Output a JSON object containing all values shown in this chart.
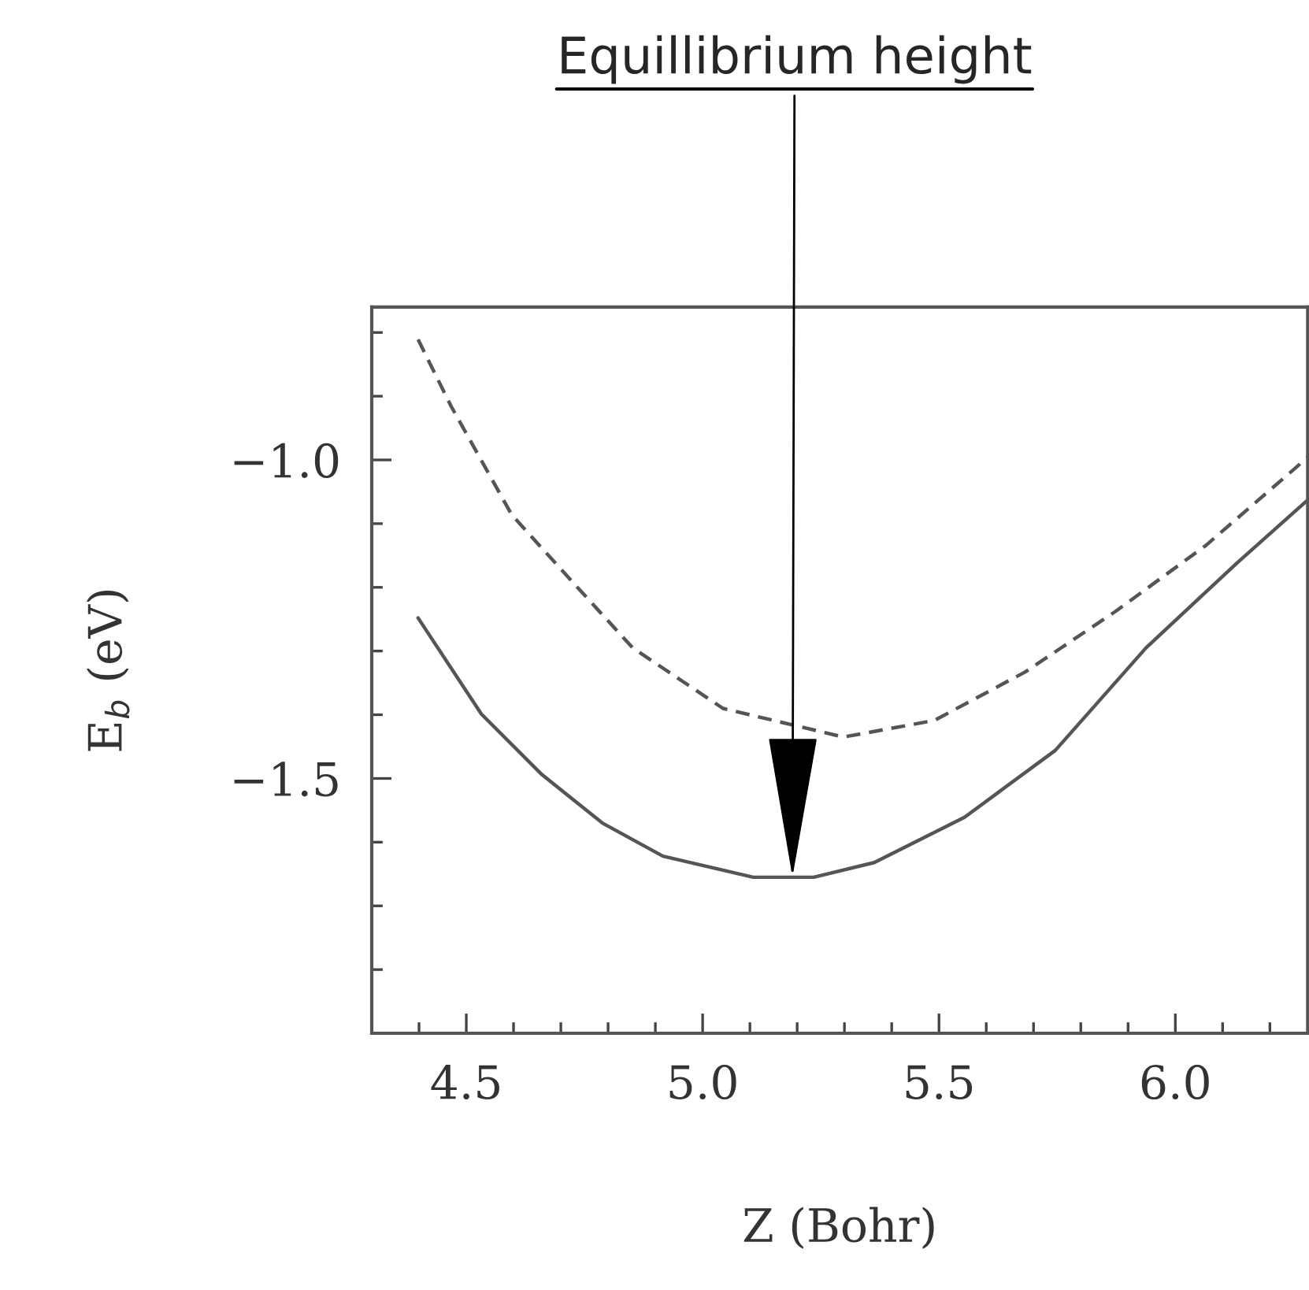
{
  "chart_data": {
    "type": "line",
    "xlabel": "Z (Bohr)",
    "ylabel": "E$_{b}$ (eV)",
    "xlim": [
      4.3,
      6.28
    ],
    "ylim": [
      -1.9,
      -0.76
    ],
    "xticks": [
      4.5,
      {
        "value": 5.0,
        "label": "5.0"
      },
      5.5,
      {
        "value": 6.0,
        "label": "6.0"
      }
    ],
    "yticks": [
      {
        "value": -1.0,
        "label": "−1.0"
      },
      {
        "value": -1.5,
        "label": "−1.5"
      }
    ],
    "grid": false,
    "marker": "none",
    "annotations": [
      {
        "text": "Equillibrium height",
        "x": 5.19,
        "y": -1.655
      }
    ],
    "series": [
      {
        "color": "#555555",
        "line_style": "dashed",
        "x": [
          4.398,
          4.468,
          4.596,
          4.724,
          4.852,
          5.043,
          5.298,
          5.49,
          5.682,
          5.873,
          6.065,
          6.28
        ],
        "values": [
          -0.811,
          -0.916,
          -1.086,
          -1.191,
          -1.295,
          -1.39,
          -1.435,
          -1.409,
          -1.333,
          -1.238,
          -1.134,
          -0.996
        ]
      },
      {
        "color": "#555555",
        "line_style": "solid",
        "x": [
          4.398,
          4.532,
          4.66,
          4.788,
          4.916,
          5.107,
          5.235,
          5.363,
          5.554,
          5.746,
          5.938,
          6.13,
          6.28
        ],
        "values": [
          -1.248,
          -1.399,
          -1.494,
          -1.57,
          -1.622,
          -1.655,
          -1.655,
          -1.632,
          -1.561,
          -1.456,
          -1.295,
          -1.162,
          -1.063
        ]
      }
    ]
  }
}
